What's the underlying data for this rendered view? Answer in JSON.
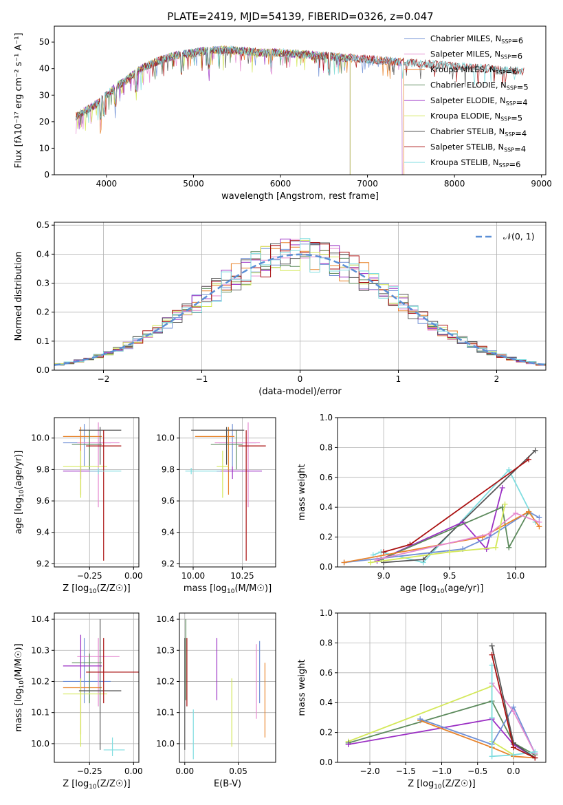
{
  "figure_title": "PLATE=2419, MJD=54139, FIBERID=0326, z=0.047",
  "colors": {
    "chabrier_miles": "#7191d6",
    "salpeter_miles": "#e58ad0",
    "kroupa_miles": "#e8832a",
    "chabrier_elodie": "#5c8a5c",
    "salpeter_elodie": "#9b30c4",
    "kroupa_elodie": "#d4e85a",
    "chabrier_stelib": "#555555",
    "salpeter_stelib": "#aa1111",
    "kroupa_stelib": "#7fdde0",
    "gauss": "#5b8fd6",
    "grid": "#b0b0b0"
  },
  "chart_data": [
    {
      "id": "spectrum",
      "type": "line",
      "xlabel": "wavelength [Angstrom, rest frame]",
      "ylabel": "Flux [fλ10⁻¹⁷ erg cm⁻² s⁻¹ A⁻¹]",
      "xlim": [
        3400,
        9050
      ],
      "ylim": [
        0,
        56
      ],
      "xticks": [
        4000,
        5000,
        6000,
        7000,
        8000,
        9000
      ],
      "yticks": [
        0,
        10,
        20,
        30,
        40,
        50
      ],
      "grid": false,
      "legend_position": "top-right",
      "series": [
        {
          "name": "Chabrier MILES, N_SSP=6",
          "key": "chabrier_miles"
        },
        {
          "name": "Salpeter MILES, N_SSP=6",
          "key": "salpeter_miles"
        },
        {
          "name": "Kroupa MILES, N_SSP=6",
          "key": "kroupa_miles"
        },
        {
          "name": "Chabrier ELODIE, N_SSP=5",
          "key": "chabrier_elodie"
        },
        {
          "name": "Salpeter ELODIE, N_SSP=4",
          "key": "salpeter_elodie"
        },
        {
          "name": "Kroupa ELODIE, N_SSP=5",
          "key": "kroupa_elodie"
        },
        {
          "name": "Chabrier STELIB, N_SSP=4",
          "key": "chabrier_stelib"
        },
        {
          "name": "Salpeter STELIB, N_SSP=4",
          "key": "salpeter_stelib"
        },
        {
          "name": "Kroupa STELIB, N_SSP=6",
          "key": "kroupa_stelib"
        }
      ],
      "continuum": {
        "x": [
          3650,
          3800,
          3900,
          4000,
          4100,
          4200,
          4400,
          4600,
          4800,
          5000,
          5200,
          5400,
          5600,
          5800,
          6000,
          6200,
          6400,
          6600,
          6800,
          7000,
          7200,
          7400,
          7600,
          7800,
          8000,
          8200,
          8400,
          8600,
          8800
        ],
        "y": [
          22,
          25,
          27,
          30,
          33,
          35,
          40,
          43,
          45,
          46,
          47,
          47,
          46.5,
          46,
          46,
          45.5,
          45,
          44.5,
          44,
          43.5,
          43,
          42.5,
          42,
          41.5,
          41,
          40.5,
          40,
          39.5,
          39
        ]
      },
      "model_ranges": {
        "chabrier_miles": [
          3650,
          7400
        ],
        "salpeter_miles": [
          3650,
          7400
        ],
        "kroupa_miles": [
          3650,
          7420
        ],
        "chabrier_elodie": [
          3650,
          6800
        ],
        "salpeter_elodie": [
          3650,
          6800
        ],
        "kroupa_elodie": [
          3650,
          6800
        ],
        "chabrier_stelib": [
          3650,
          8800
        ],
        "salpeter_stelib": [
          3650,
          8800
        ],
        "kroupa_stelib": [
          3650,
          8800
        ]
      }
    },
    {
      "id": "residuals",
      "type": "line",
      "xlabel": "(data-model)/error",
      "ylabel": "Normed distribution",
      "xlim": [
        -2.5,
        2.5
      ],
      "ylim": [
        0,
        0.51
      ],
      "xticks": [
        -2,
        -1,
        0,
        1,
        2
      ],
      "yticks": [
        0.0,
        0.1,
        0.2,
        0.3,
        0.4,
        0.5
      ],
      "grid": true,
      "legend_position": "top-right",
      "legend": [
        "𝒩(0, 1)"
      ],
      "bin_width": 0.1
    },
    {
      "id": "z_vs_age",
      "type": "scatter",
      "xlabel": "Z [log10(Z/Z☉)]",
      "ylabel": "age  [log10(age/yr)]",
      "xlim": [
        -0.45,
        0.03
      ],
      "ylim": [
        9.18,
        10.13
      ],
      "xticks": [
        -0.25,
        0.0
      ],
      "yticks": [
        9.2,
        9.4,
        9.6,
        9.8,
        10.0
      ],
      "grid": true,
      "points": [
        {
          "key": "chabrier_miles",
          "x": -0.28,
          "xerr": [
            0.12,
            0.15
          ],
          "y": 9.97,
          "yerr": [
            0.15,
            0.12
          ]
        },
        {
          "key": "salpeter_miles",
          "x": -0.2,
          "xerr": [
            0.12,
            0.12
          ],
          "y": 9.97,
          "yerr": [
            0.41,
            0.13
          ]
        },
        {
          "key": "kroupa_miles",
          "x": -0.3,
          "xerr": [
            0.1,
            0.12
          ],
          "y": 10.01,
          "yerr": [
            0.37,
            0.06
          ]
        },
        {
          "key": "chabrier_elodie",
          "x": -0.25,
          "xerr": [
            0.1,
            0.07
          ],
          "y": 9.96,
          "yerr": [
            0.16,
            0.09
          ]
        },
        {
          "key": "salpeter_elodie",
          "x": -0.3,
          "xerr": [
            0.1,
            0.12
          ],
          "y": 9.79,
          "yerr": [
            0.05,
            0.03
          ]
        },
        {
          "key": "kroupa_elodie",
          "x": -0.3,
          "xerr": [
            0.1,
            0.15
          ],
          "y": 9.82,
          "yerr": [
            0.2,
            0.1
          ]
        },
        {
          "key": "chabrier_stelib",
          "x": -0.19,
          "xerr": [
            0.12,
            0.12
          ],
          "y": 10.05,
          "yerr": [
            0.22,
            0.02
          ]
        },
        {
          "key": "salpeter_stelib",
          "x": -0.17,
          "xerr": [
            0.1,
            0.1
          ],
          "y": 9.95,
          "yerr": [
            0.73,
            0.1
          ]
        },
        {
          "key": "kroupa_stelib",
          "x": -0.2,
          "xerr": [
            0.05,
            0.13
          ],
          "y": 9.79,
          "yerr": [
            0.02,
            0.02
          ]
        }
      ]
    },
    {
      "id": "mass_vs_age",
      "type": "scatter",
      "xlabel": "mass [log10(M/M☉)]",
      "ylabel": "",
      "xlim": [
        9.93,
        10.42
      ],
      "ylim": [
        9.18,
        10.13
      ],
      "xticks": [
        10.0,
        10.25
      ],
      "yticks": [
        9.2,
        9.4,
        9.6,
        9.8,
        10.0
      ],
      "grid": true,
      "points": [
        {
          "key": "chabrier_miles",
          "x": 10.2,
          "xerr": [
            0.07,
            0.12
          ],
          "y": 9.97,
          "yerr": [
            0.15,
            0.12
          ]
        },
        {
          "key": "salpeter_miles",
          "x": 10.28,
          "xerr": [
            0.17,
            0.06
          ],
          "y": 9.97,
          "yerr": [
            0.41,
            0.13
          ]
        },
        {
          "key": "kroupa_miles",
          "x": 10.18,
          "xerr": [
            0.17,
            0.03
          ],
          "y": 10.01,
          "yerr": [
            0.37,
            0.06
          ]
        },
        {
          "key": "chabrier_elodie",
          "x": 10.22,
          "xerr": [
            0.13,
            0.03
          ],
          "y": 9.96,
          "yerr": [
            0.16,
            0.09
          ]
        },
        {
          "key": "salpeter_elodie",
          "x": 10.2,
          "xerr": [
            0.08,
            0.15
          ],
          "y": 9.79,
          "yerr": [
            0.05,
            0.03
          ]
        },
        {
          "key": "kroupa_elodie",
          "x": 10.15,
          "xerr": [
            0.03,
            0.03
          ],
          "y": 9.82,
          "yerr": [
            0.2,
            0.1
          ]
        },
        {
          "key": "chabrier_stelib",
          "x": 10.17,
          "xerr": [
            0.18,
            0.09
          ],
          "y": 10.05,
          "yerr": [
            0.22,
            0.02
          ]
        },
        {
          "key": "salpeter_stelib",
          "x": 10.27,
          "xerr": [
            0.04,
            0.1
          ],
          "y": 9.95,
          "yerr": [
            0.73,
            0.1
          ]
        },
        {
          "key": "kroupa_stelib",
          "x": 9.99,
          "xerr": [
            0.03,
            0.15
          ],
          "y": 9.79,
          "yerr": [
            0.02,
            0.02
          ]
        }
      ]
    },
    {
      "id": "age_vs_weight",
      "type": "line",
      "xlabel": "age  [log10(age/yr)]",
      "ylabel": "mass weight",
      "xlim": [
        8.65,
        10.23
      ],
      "ylim": [
        0.0,
        1.0
      ],
      "xticks": [
        9.0,
        9.5,
        10.0
      ],
      "yticks": [
        0.0,
        0.2,
        0.4,
        0.6,
        0.8,
        1.0
      ],
      "grid": true,
      "series": [
        {
          "key": "kroupa_stelib",
          "x": [
            8.92,
            8.98,
            9.3,
            9.95,
            10.15
          ],
          "y": [
            0.08,
            0.1,
            0.03,
            0.65,
            0.3
          ]
        },
        {
          "key": "chabrier_stelib",
          "x": [
            9.0,
            9.3,
            10.15
          ],
          "y": [
            0.03,
            0.05,
            0.78
          ]
        },
        {
          "key": "salpeter_stelib",
          "x": [
            9.0,
            9.2,
            10.1
          ],
          "y": [
            0.1,
            0.15,
            0.72
          ]
        },
        {
          "key": "salpeter_elodie",
          "x": [
            8.95,
            9.6,
            9.78,
            9.9
          ],
          "y": [
            0.04,
            0.3,
            0.12,
            0.53
          ]
        },
        {
          "key": "chabrier_elodie",
          "x": [
            8.98,
            9.9,
            9.95,
            10.1
          ],
          "y": [
            0.05,
            0.4,
            0.13,
            0.37
          ]
        },
        {
          "key": "chabrier_miles",
          "x": [
            8.7,
            9.6,
            9.8,
            10.1,
            10.18
          ],
          "y": [
            0.03,
            0.12,
            0.2,
            0.37,
            0.33
          ]
        },
        {
          "key": "kroupa_miles",
          "x": [
            8.7,
            9.75,
            10.1,
            10.18
          ],
          "y": [
            0.03,
            0.2,
            0.37,
            0.27
          ]
        },
        {
          "key": "salpeter_miles",
          "x": [
            8.95,
            9.8,
            10.0,
            10.18
          ],
          "y": [
            0.05,
            0.22,
            0.36,
            0.3
          ]
        },
        {
          "key": "kroupa_elodie",
          "x": [
            8.9,
            9.5,
            9.85,
            9.92
          ],
          "y": [
            0.03,
            0.1,
            0.13,
            0.42
          ]
        }
      ]
    },
    {
      "id": "z_vs_mass",
      "type": "scatter",
      "xlabel": "Z [log10(Z/Z☉)]",
      "ylabel": "mass [log10(M/M☉)]",
      "xlim": [
        -0.45,
        0.03
      ],
      "ylim": [
        9.94,
        10.42
      ],
      "xticks": [
        -0.25,
        0.0
      ],
      "yticks": [
        10.0,
        10.1,
        10.2,
        10.3,
        10.4
      ],
      "grid": true,
      "points": [
        {
          "key": "chabrier_miles",
          "x": -0.28,
          "xerr": [
            0.12,
            0.15
          ],
          "y": 10.2,
          "yerr": [
            0.07,
            0.14
          ]
        },
        {
          "key": "salpeter_miles",
          "x": -0.2,
          "xerr": [
            0.12,
            0.12
          ],
          "y": 10.28,
          "yerr": [
            0.16,
            0.06
          ]
        },
        {
          "key": "kroupa_miles",
          "x": -0.3,
          "xerr": [
            0.1,
            0.12
          ],
          "y": 10.18,
          "yerr": [
            0.15,
            0.03
          ]
        },
        {
          "key": "chabrier_elodie",
          "x": -0.25,
          "xerr": [
            0.1,
            0.07
          ],
          "y": 10.26,
          "yerr": [
            0.13,
            0.03
          ]
        },
        {
          "key": "salpeter_elodie",
          "x": -0.3,
          "xerr": [
            0.1,
            0.12
          ],
          "y": 10.25,
          "yerr": [
            0.08,
            0.1
          ]
        },
        {
          "key": "kroupa_elodie",
          "x": -0.3,
          "xerr": [
            0.1,
            0.15
          ],
          "y": 10.16,
          "yerr": [
            0.17,
            0.05
          ]
        },
        {
          "key": "chabrier_stelib",
          "x": -0.19,
          "xerr": [
            0.12,
            0.12
          ],
          "y": 10.17,
          "yerr": [
            0.19,
            0.23
          ]
        },
        {
          "key": "salpeter_stelib",
          "x": -0.17,
          "xerr": [
            0.1,
            0.2
          ],
          "y": 10.23,
          "yerr": [
            0.1,
            0.11
          ]
        },
        {
          "key": "kroupa_stelib",
          "x": -0.12,
          "xerr": [
            0.05,
            0.07
          ],
          "y": 9.98,
          "yerr": [
            0.02,
            0.04
          ]
        }
      ]
    },
    {
      "id": "ebv_vs_mass",
      "type": "scatter",
      "xlabel": "E(B-V)",
      "ylabel": "",
      "xlim": [
        -0.005,
        0.085
      ],
      "ylim": [
        9.94,
        10.42
      ],
      "xticks": [
        0.0,
        0.05
      ],
      "yticks": [
        10.0,
        10.1,
        10.2,
        10.3,
        10.4
      ],
      "grid": true,
      "points": [
        {
          "key": "chabrier_miles",
          "x": 0.07,
          "y": 10.23,
          "yerr": [
            0.1,
            0.1
          ]
        },
        {
          "key": "salpeter_miles",
          "x": 0.067,
          "y": 10.2,
          "yerr": [
            0.12,
            0.12
          ]
        },
        {
          "key": "kroupa_miles",
          "x": 0.075,
          "y": 10.14,
          "yerr": [
            0.12,
            0.12
          ]
        },
        {
          "key": "chabrier_elodie",
          "x": 0.001,
          "y": 10.27,
          "yerr": [
            0.13,
            0.13
          ]
        },
        {
          "key": "salpeter_elodie",
          "x": 0.03,
          "y": 10.24,
          "yerr": [
            0.1,
            0.1
          ]
        },
        {
          "key": "kroupa_elodie",
          "x": 0.044,
          "y": 10.1,
          "yerr": [
            0.11,
            0.11
          ]
        },
        {
          "key": "chabrier_stelib",
          "x": 0.0,
          "y": 10.16,
          "yerr": [
            0.18,
            0.18
          ]
        },
        {
          "key": "salpeter_stelib",
          "x": 0.002,
          "y": 10.23,
          "yerr": [
            0.11,
            0.11
          ]
        },
        {
          "key": "kroupa_stelib",
          "x": 0.008,
          "y": 10.03,
          "yerr": [
            0.08,
            0.08
          ]
        }
      ]
    },
    {
      "id": "z_vs_weight",
      "type": "line",
      "xlabel": "Z [log10(Z/Z☉)]",
      "ylabel": "mass weight",
      "xlim": [
        -2.45,
        0.45
      ],
      "ylim": [
        0.0,
        1.0
      ],
      "xticks": [
        -2.0,
        -1.5,
        -1.0,
        -0.5,
        0.0
      ],
      "yticks": [
        0.0,
        0.2,
        0.4,
        0.6,
        0.8,
        1.0
      ],
      "grid": true,
      "series": [
        {
          "key": "kroupa_elodie",
          "x": [
            -2.3,
            -0.3,
            -0.3,
            0.0
          ],
          "y": [
            0.14,
            0.51,
            0.14,
            0.05
          ]
        },
        {
          "key": "chabrier_elodie",
          "x": [
            -2.3,
            -0.3,
            0.0,
            0.3
          ],
          "y": [
            0.13,
            0.41,
            0.13,
            0.05
          ]
        },
        {
          "key": "salpeter_elodie",
          "x": [
            -2.3,
            -0.3,
            0.0,
            0.3
          ],
          "y": [
            0.12,
            0.29,
            0.12,
            0.03
          ]
        },
        {
          "key": "kroupa_miles",
          "x": [
            -1.3,
            -0.3,
            0.0,
            0.3
          ],
          "y": [
            0.28,
            0.1,
            0.04,
            0.03
          ]
        },
        {
          "key": "chabrier_miles",
          "x": [
            -1.3,
            -0.3,
            0.0,
            0.3
          ],
          "y": [
            0.29,
            0.12,
            0.37,
            0.06
          ]
        },
        {
          "key": "salpeter_miles",
          "x": [
            -0.3,
            0.0,
            0.3
          ],
          "y": [
            0.53,
            0.34,
            0.06
          ]
        },
        {
          "key": "kroupa_stelib",
          "x": [
            -0.3,
            -0.3,
            -0.3,
            0.0,
            0.3
          ],
          "y": [
            0.65,
            0.3,
            0.04,
            0.05,
            0.07
          ]
        },
        {
          "key": "chabrier_stelib",
          "x": [
            -0.3,
            0.0,
            0.3
          ],
          "y": [
            0.78,
            0.13,
            0.03
          ]
        },
        {
          "key": "salpeter_stelib",
          "x": [
            -0.3,
            0.0,
            0.3
          ],
          "y": [
            0.72,
            0.1,
            0.03
          ]
        }
      ]
    }
  ]
}
